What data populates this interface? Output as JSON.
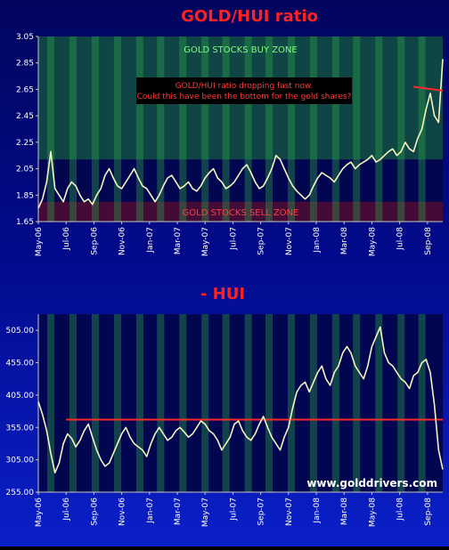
{
  "chart_data": [
    {
      "type": "line",
      "title": "GOLD/HUI ratio",
      "ylim": [
        1.65,
        3.05
      ],
      "yticks": [
        "3.05",
        "2.85",
        "2.65",
        "2.45",
        "2.25",
        "2.05",
        "1.85",
        "1.65"
      ],
      "xticks": [
        "May-06",
        "Jul-06",
        "Sep-06",
        "Nov-06",
        "Jan-07",
        "Mar-07",
        "May-07",
        "Jul-07",
        "Sep-07",
        "Nov-07",
        "Jan-08",
        "Mar-08",
        "May-08",
        "Jul-08",
        "Sep-08"
      ],
      "zones": [
        {
          "label": "GOLD STOCKS BUY ZONE",
          "from": 2.12,
          "to": 3.05,
          "color": "#1e7a3c"
        },
        {
          "label": "GOLD STOCKS SELL  ZONE",
          "from": 1.65,
          "to": 1.8,
          "color": "#7a1020"
        }
      ],
      "annotation": "GOLD/HUI ratio dropping fast now.  Could this have been the bottom for the gold shares?",
      "series": [
        {
          "color": "#f4f4c0",
          "x": [
            0,
            0.3,
            0.6,
            0.9,
            1.2,
            1.5,
            1.8,
            2.1,
            2.4,
            2.7,
            3.0,
            3.3,
            3.6,
            3.9,
            4.2,
            4.5,
            4.8,
            5.1,
            5.4,
            5.7,
            6.0,
            6.3,
            6.6,
            6.9,
            7.2,
            7.5,
            7.8,
            8.1,
            8.4,
            8.7,
            9.0,
            9.3,
            9.6,
            9.9,
            10.2,
            10.5,
            10.8,
            11.1,
            11.4,
            11.7,
            12.0,
            12.3,
            12.6,
            12.9,
            13.2,
            13.5,
            13.8,
            14.1,
            14.4,
            14.7,
            15.0,
            15.3,
            15.6,
            15.9,
            16.2,
            16.5,
            16.8,
            17.1,
            17.4,
            17.7,
            18.0,
            18.3,
            18.6,
            18.9,
            19.2,
            19.5,
            19.8,
            20.1,
            20.4,
            20.7,
            21.0,
            21.3,
            21.6,
            21.9,
            22.2,
            22.5,
            22.8,
            23.1,
            23.4,
            23.7,
            24.0,
            24.3,
            24.6,
            24.9,
            25.2,
            25.5,
            25.8,
            26.1,
            26.4,
            26.7,
            27.0,
            27.3,
            27.6,
            27.9,
            28.2,
            28.5,
            28.8,
            29.1
          ],
          "y": [
            1.75,
            1.82,
            1.95,
            2.18,
            1.9,
            1.85,
            1.8,
            1.9,
            1.95,
            1.92,
            1.85,
            1.8,
            1.82,
            1.78,
            1.85,
            1.9,
            2.0,
            2.05,
            1.98,
            1.92,
            1.9,
            1.95,
            2.0,
            2.05,
            1.98,
            1.92,
            1.9,
            1.85,
            1.8,
            1.85,
            1.92,
            1.98,
            2.0,
            1.95,
            1.9,
            1.92,
            1.95,
            1.9,
            1.88,
            1.92,
            1.98,
            2.02,
            2.05,
            1.98,
            1.95,
            1.9,
            1.92,
            1.95,
            2.0,
            2.05,
            2.08,
            2.02,
            1.95,
            1.9,
            1.92,
            1.98,
            2.05,
            2.15,
            2.12,
            2.05,
            1.98,
            1.92,
            1.88,
            1.85,
            1.82,
            1.85,
            1.92,
            1.98,
            2.02,
            2.0,
            1.98,
            1.95,
            2.0,
            2.05,
            2.08,
            2.1,
            2.05,
            2.08,
            2.1,
            2.12,
            2.15,
            2.1,
            2.12,
            2.15,
            2.18,
            2.2,
            2.15,
            2.18,
            2.25,
            2.2,
            2.18,
            2.28,
            2.35,
            2.5,
            2.62,
            2.45,
            2.4,
            2.88
          ]
        }
      ],
      "trendline": {
        "from": [
          27.0,
          2.67
        ],
        "to": [
          29.1,
          2.64
        ],
        "color": "#ff2a2a"
      }
    },
    {
      "type": "line",
      "title": "- HUI",
      "ylim": [
        255,
        530
      ],
      "yticks": [
        "505.00",
        "455.00",
        "405.00",
        "355.00",
        "305.00",
        "255.00"
      ],
      "xticks": [
        "May-06",
        "Jul-06",
        "Sep-06",
        "Nov-06",
        "Jan-07",
        "Mar-07",
        "May-07",
        "Jul-07",
        "Sep-07",
        "Nov-07",
        "Jan-08",
        "Mar-08",
        "May-08",
        "Jul-08",
        "Sep-08"
      ],
      "watermark": "www.golddrivers.com",
      "series": [
        {
          "color": "#f4f4c0",
          "x": [
            0,
            0.3,
            0.6,
            0.9,
            1.2,
            1.5,
            1.8,
            2.1,
            2.4,
            2.7,
            3.0,
            3.3,
            3.6,
            3.9,
            4.2,
            4.5,
            4.8,
            5.1,
            5.4,
            5.7,
            6.0,
            6.3,
            6.6,
            6.9,
            7.2,
            7.5,
            7.8,
            8.1,
            8.4,
            8.7,
            9.0,
            9.3,
            9.6,
            9.9,
            10.2,
            10.5,
            10.8,
            11.1,
            11.4,
            11.7,
            12.0,
            12.3,
            12.6,
            12.9,
            13.2,
            13.5,
            13.8,
            14.1,
            14.4,
            14.7,
            15.0,
            15.3,
            15.6,
            15.9,
            16.2,
            16.5,
            16.8,
            17.1,
            17.4,
            17.7,
            18.0,
            18.3,
            18.6,
            18.9,
            19.2,
            19.5,
            19.8,
            20.1,
            20.4,
            20.7,
            21.0,
            21.3,
            21.6,
            21.9,
            22.2,
            22.5,
            22.8,
            23.1,
            23.4,
            23.7,
            24.0,
            24.3,
            24.6,
            24.9,
            25.2,
            25.5,
            25.8,
            26.1,
            26.4,
            26.7,
            27.0,
            27.3,
            27.6,
            27.9,
            28.2,
            28.5,
            28.8,
            29.1
          ],
          "y": [
            395,
            375,
            350,
            315,
            285,
            300,
            330,
            345,
            338,
            325,
            335,
            350,
            360,
            340,
            320,
            305,
            295,
            300,
            315,
            330,
            345,
            355,
            340,
            330,
            325,
            320,
            310,
            330,
            345,
            355,
            345,
            335,
            340,
            350,
            355,
            348,
            340,
            345,
            355,
            365,
            360,
            350,
            345,
            335,
            320,
            330,
            340,
            360,
            365,
            350,
            340,
            335,
            345,
            360,
            372,
            355,
            340,
            330,
            320,
            340,
            355,
            385,
            410,
            420,
            425,
            410,
            425,
            440,
            450,
            430,
            420,
            440,
            450,
            470,
            480,
            470,
            450,
            440,
            430,
            450,
            480,
            495,
            510,
            470,
            455,
            450,
            440,
            430,
            425,
            415,
            435,
            440,
            455,
            460,
            440,
            390,
            320,
            290
          ]
        }
      ],
      "reference_line": {
        "y": 367,
        "color": "#ff2a2a"
      }
    }
  ]
}
